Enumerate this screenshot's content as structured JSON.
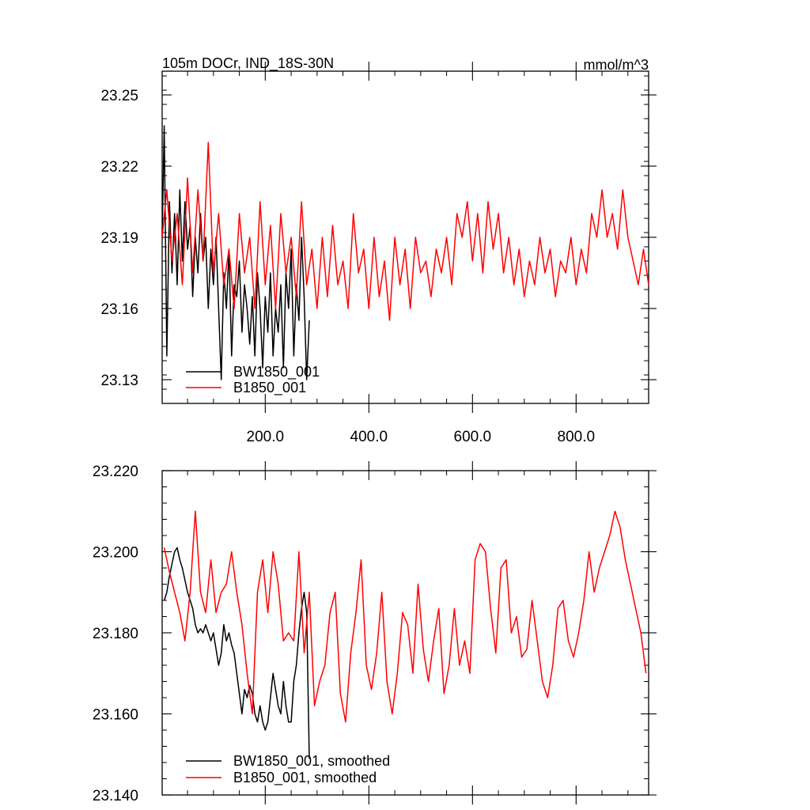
{
  "chart_data": [
    {
      "type": "line",
      "title": "105m DOCr, IND_18S-30N",
      "units": "mmol/m^3",
      "xlim": [
        1,
        940
      ],
      "ylim": [
        23.12,
        23.26
      ],
      "xticks": [
        200,
        400,
        600,
        800
      ],
      "xtick_labels": [
        "200.0",
        "400.0",
        "600.0",
        "800.0"
      ],
      "yticks": [
        23.13,
        23.16,
        23.19,
        23.22,
        23.25
      ],
      "ytick_labels": [
        "23.13",
        "23.16",
        "23.19",
        "23.22",
        "23.25"
      ],
      "legend": "bottom-left",
      "series": [
        {
          "name": "BW1850_001",
          "color": "#000000",
          "x": [
            1,
            5,
            10,
            15,
            20,
            25,
            30,
            35,
            40,
            45,
            50,
            55,
            60,
            65,
            70,
            75,
            80,
            85,
            90,
            95,
            100,
            105,
            110,
            115,
            120,
            125,
            130,
            135,
            140,
            145,
            150,
            155,
            160,
            165,
            170,
            175,
            180,
            185,
            190,
            195,
            200,
            205,
            210,
            215,
            220,
            225,
            230,
            235,
            240,
            245,
            250,
            255,
            260,
            265,
            270,
            275,
            280,
            285
          ],
          "values": [
            23.19,
            23.237,
            23.14,
            23.205,
            23.175,
            23.2,
            23.17,
            23.21,
            23.18,
            23.205,
            23.185,
            23.195,
            23.165,
            23.19,
            23.175,
            23.2,
            23.18,
            23.19,
            23.16,
            23.185,
            23.17,
            23.19,
            23.16,
            23.13,
            23.175,
            23.16,
            23.185,
            23.14,
            23.17,
            23.165,
            23.18,
            23.15,
            23.17,
            23.16,
            23.145,
            23.165,
            23.14,
            23.175,
            23.16,
            23.135,
            23.165,
            23.15,
            23.175,
            23.14,
            23.16,
            23.15,
            23.17,
            23.135,
            23.175,
            23.16,
            23.185,
            23.14,
            23.17,
            23.155,
            23.19,
            23.165,
            23.13,
            23.155
          ]
        },
        {
          "name": "B1850_001",
          "color": "#ff0000",
          "x": [
            1,
            10,
            20,
            30,
            40,
            50,
            60,
            70,
            80,
            90,
            100,
            110,
            120,
            130,
            140,
            150,
            160,
            170,
            180,
            190,
            200,
            210,
            220,
            230,
            240,
            250,
            260,
            270,
            280,
            290,
            300,
            310,
            320,
            330,
            340,
            350,
            360,
            370,
            380,
            390,
            400,
            410,
            420,
            430,
            440,
            450,
            460,
            470,
            480,
            490,
            500,
            510,
            520,
            530,
            540,
            550,
            560,
            570,
            580,
            590,
            600,
            610,
            620,
            630,
            640,
            650,
            660,
            670,
            680,
            690,
            700,
            710,
            720,
            730,
            740,
            750,
            760,
            770,
            780,
            790,
            800,
            810,
            820,
            830,
            840,
            850,
            860,
            870,
            880,
            890,
            900,
            910,
            920,
            930,
            940
          ],
          "values": [
            23.19,
            23.21,
            23.18,
            23.2,
            23.17,
            23.215,
            23.175,
            23.21,
            23.18,
            23.23,
            23.175,
            23.2,
            23.17,
            23.185,
            23.16,
            23.2,
            23.175,
            23.19,
            23.16,
            23.205,
            23.17,
            23.195,
            23.16,
            23.2,
            23.175,
            23.19,
            23.165,
            23.205,
            23.17,
            23.185,
            23.16,
            23.19,
            23.165,
            23.195,
            23.17,
            23.18,
            23.16,
            23.2,
            23.175,
            23.185,
            23.16,
            23.19,
            23.165,
            23.18,
            23.155,
            23.19,
            23.17,
            23.185,
            23.16,
            23.19,
            23.175,
            23.18,
            23.165,
            23.185,
            23.175,
            23.19,
            23.17,
            23.2,
            23.19,
            23.205,
            23.18,
            23.2,
            23.175,
            23.205,
            23.185,
            23.2,
            23.175,
            23.19,
            23.17,
            23.185,
            23.165,
            23.18,
            23.17,
            23.19,
            23.175,
            23.185,
            23.165,
            23.18,
            23.175,
            23.19,
            23.17,
            23.185,
            23.175,
            23.2,
            23.19,
            23.21,
            23.19,
            23.2,
            23.185,
            23.21,
            23.19,
            23.18,
            23.17,
            23.185,
            23.17
          ]
        }
      ]
    },
    {
      "type": "line",
      "xlim": [
        1,
        940
      ],
      "ylim": [
        23.14,
        23.22
      ],
      "yticks": [
        23.14,
        23.16,
        23.18,
        23.2,
        23.22
      ],
      "ytick_labels": [
        "23.140",
        "23.160",
        "23.180",
        "23.200",
        "23.220"
      ],
      "legend": "bottom-left",
      "series": [
        {
          "name": "BW1850_001, smoothed",
          "color": "#000000",
          "x": [
            5,
            10,
            15,
            20,
            25,
            30,
            35,
            40,
            45,
            50,
            55,
            60,
            65,
            70,
            75,
            80,
            85,
            90,
            95,
            100,
            105,
            110,
            115,
            120,
            125,
            130,
            135,
            140,
            145,
            150,
            155,
            160,
            165,
            170,
            175,
            180,
            185,
            190,
            195,
            200,
            205,
            210,
            215,
            220,
            225,
            230,
            235,
            240,
            245,
            250,
            255,
            260,
            265,
            270,
            275,
            280,
            285
          ],
          "values": [
            23.188,
            23.19,
            23.194,
            23.197,
            23.2,
            23.201,
            23.198,
            23.196,
            23.193,
            23.19,
            23.188,
            23.186,
            23.182,
            23.18,
            23.181,
            23.18,
            23.182,
            23.18,
            23.178,
            23.18,
            23.176,
            23.172,
            23.175,
            23.182,
            23.178,
            23.18,
            23.177,
            23.175,
            23.17,
            23.165,
            23.16,
            23.166,
            23.164,
            23.167,
            23.165,
            23.16,
            23.158,
            23.162,
            23.158,
            23.156,
            23.158,
            23.164,
            23.17,
            23.166,
            23.162,
            23.16,
            23.168,
            23.162,
            23.158,
            23.158,
            23.168,
            23.172,
            23.18,
            23.186,
            23.19,
            23.185,
            23.149
          ]
        },
        {
          "name": "B1850_001, smoothed",
          "color": "#ff0000",
          "x": [
            5,
            15,
            25,
            35,
            45,
            55,
            65,
            75,
            85,
            95,
            105,
            115,
            125,
            135,
            145,
            155,
            165,
            175,
            185,
            195,
            205,
            215,
            225,
            235,
            245,
            255,
            265,
            275,
            285,
            295,
            305,
            315,
            325,
            335,
            345,
            355,
            365,
            375,
            385,
            395,
            405,
            415,
            425,
            435,
            445,
            455,
            465,
            475,
            485,
            495,
            505,
            515,
            525,
            535,
            545,
            555,
            565,
            575,
            585,
            595,
            605,
            615,
            625,
            635,
            645,
            655,
            665,
            675,
            685,
            695,
            705,
            715,
            725,
            735,
            745,
            755,
            765,
            775,
            785,
            795,
            805,
            815,
            825,
            835,
            845,
            855,
            865,
            875,
            885,
            895,
            905,
            915,
            925,
            935
          ],
          "values": [
            23.201,
            23.195,
            23.19,
            23.185,
            23.178,
            23.19,
            23.21,
            23.19,
            23.185,
            23.198,
            23.185,
            23.19,
            23.192,
            23.2,
            23.19,
            23.182,
            23.17,
            23.16,
            23.19,
            23.198,
            23.185,
            23.2,
            23.192,
            23.178,
            23.18,
            23.178,
            23.2,
            23.175,
            23.19,
            23.162,
            23.168,
            23.172,
            23.185,
            23.19,
            23.165,
            23.158,
            23.175,
            23.185,
            23.198,
            23.172,
            23.166,
            23.175,
            23.19,
            23.168,
            23.16,
            23.17,
            23.185,
            23.182,
            23.17,
            23.192,
            23.176,
            23.168,
            23.178,
            23.186,
            23.165,
            23.172,
            23.186,
            23.172,
            23.178,
            23.17,
            23.198,
            23.202,
            23.2,
            23.186,
            23.175,
            23.196,
            23.198,
            23.18,
            23.184,
            23.174,
            23.176,
            23.188,
            23.178,
            23.168,
            23.164,
            23.172,
            23.186,
            23.188,
            23.178,
            23.174,
            23.18,
            23.188,
            23.2,
            23.19,
            23.196,
            23.2,
            23.204,
            23.21,
            23.206,
            23.198,
            23.192,
            23.186,
            23.18,
            23.17
          ]
        }
      ]
    }
  ]
}
